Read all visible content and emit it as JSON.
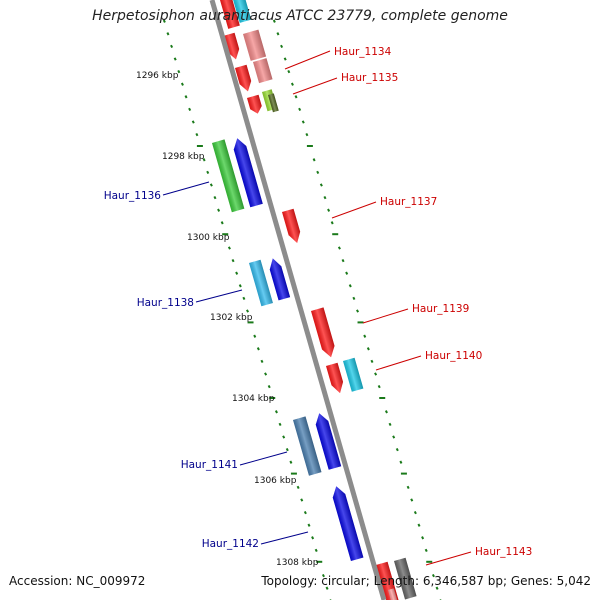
{
  "title": "Herpetosiphon aurantiacus ATCC 23779, complete genome",
  "footer": {
    "accession_label": "Accession:",
    "accession": "NC_009972",
    "topology_label": "Topology:",
    "topology": "circular",
    "length_label": "Length:",
    "length": "6,346,587 bp",
    "genes_label": "Genes:",
    "genes": "5,042"
  },
  "colors": {
    "backbone": "#8c8c8c",
    "ticks": "#1a7a1a",
    "label_forward": "#cc0000",
    "label_reverse": "#00008b",
    "red": "#ff1a1a",
    "blue": "#0a0ae6",
    "green": "#3ccc3c",
    "cyan": "#1ac8e6",
    "light_blue": "#33bbee",
    "steel_blue": "#4a7fb0",
    "pink": "#f48a8a",
    "gray": "#666666"
  },
  "kbp_labels": [
    "1296 kbp",
    "1298 kbp",
    "1300 kbp",
    "1302 kbp",
    "1304 kbp",
    "1306 kbp",
    "1308 kbp"
  ],
  "gene_labels": [
    {
      "text": "Haur_1134",
      "strand": "forward"
    },
    {
      "text": "Haur_1135",
      "strand": "forward"
    },
    {
      "text": "Haur_1136",
      "strand": "reverse"
    },
    {
      "text": "Haur_1137",
      "strand": "forward"
    },
    {
      "text": "Haur_1138",
      "strand": "reverse"
    },
    {
      "text": "Haur_1139",
      "strand": "forward"
    },
    {
      "text": "Haur_1140",
      "strand": "forward"
    },
    {
      "text": "Haur_1141",
      "strand": "reverse"
    },
    {
      "text": "Haur_1142",
      "strand": "reverse"
    },
    {
      "text": "Haur_1143",
      "strand": "forward"
    }
  ]
}
